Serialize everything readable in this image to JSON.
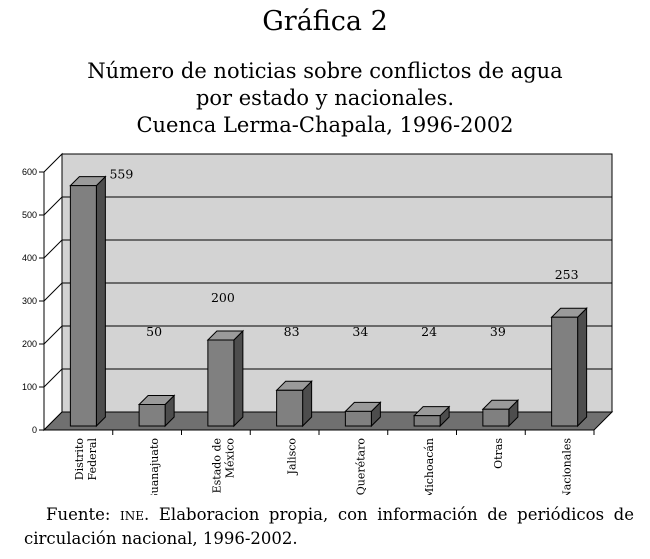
{
  "figure_label": "Gráfica 2",
  "chart_data": {
    "type": "bar",
    "title_lines": [
      "Número de noticias sobre conflictos de agua",
      "por estado y nacionales.",
      "Cuenca Lerma-Chapala, 1996-2002"
    ],
    "categories": [
      [
        "Distrito",
        "Federal"
      ],
      [
        "Guanajuato"
      ],
      [
        "Estado de",
        "México"
      ],
      [
        "Jalisco"
      ],
      [
        "Querétaro"
      ],
      [
        "Michoacán"
      ],
      [
        "Otras"
      ],
      [
        "Nacionales"
      ]
    ],
    "values": [
      559,
      50,
      200,
      83,
      34,
      24,
      39,
      253
    ],
    "ylim": [
      0,
      600
    ],
    "yticks": [
      "0",
      "100",
      "200",
      "300",
      "400",
      "500",
      "600"
    ],
    "grid": true,
    "style": "3d",
    "colors": {
      "bar_front": "#808080",
      "bar_top": "#9a9a9a",
      "bar_side": "#4d4d4d",
      "wall": "#d3d3d3",
      "floor": "#707070"
    }
  },
  "source": {
    "prefix": "Fuente: ",
    "abbr": "ine",
    "text": ". Elaboracion propia, con información de periódicos de circulación nacional, 1996-2002."
  }
}
